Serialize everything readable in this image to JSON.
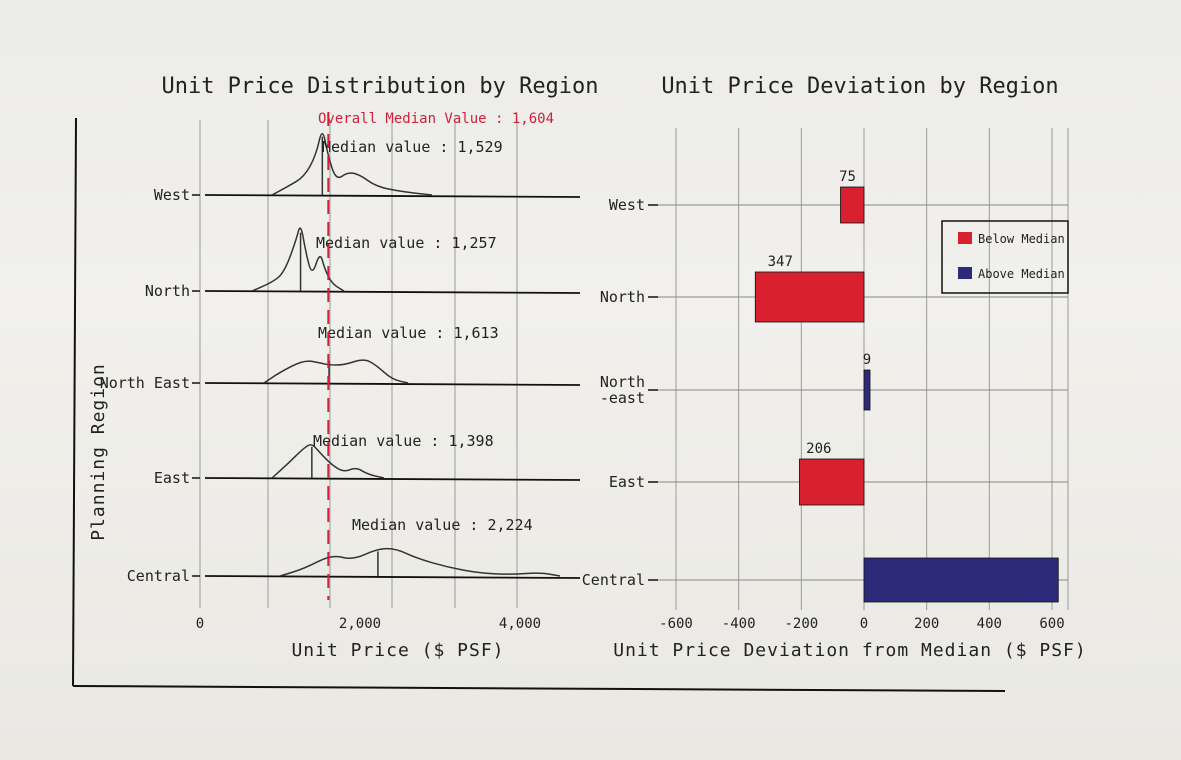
{
  "chart_data": [
    {
      "type": "area",
      "subtype": "ridgeline-density",
      "title": "Unit Price Distribution by Region",
      "xlabel": "Unit Price ($ PSF)",
      "ylabel": "Planning Region",
      "xlim": [
        0,
        5000
      ],
      "x_ticks": [
        "0",
        "2,000",
        "4,000"
      ],
      "x_tick_values": [
        0,
        2000,
        4000
      ],
      "grid": true,
      "overall_median": {
        "label": "Overall Median Value : 1,604",
        "value": 1604,
        "color": "#d0213a"
      },
      "series": [
        {
          "name": "West",
          "median": 1529,
          "median_label": "Median value : 1,529",
          "density": [
            [
              900,
              0.0
            ],
            [
              1100,
              0.12
            ],
            [
              1300,
              0.25
            ],
            [
              1450,
              0.55
            ],
            [
              1529,
              0.95
            ],
            [
              1600,
              0.55
            ],
            [
              1700,
              0.2
            ],
            [
              1850,
              0.32
            ],
            [
              2000,
              0.28
            ],
            [
              2200,
              0.12
            ],
            [
              2500,
              0.05
            ],
            [
              2900,
              0.0
            ]
          ]
        },
        {
          "name": "North",
          "median": 1257,
          "median_label": "Median value : 1,257",
          "density": [
            [
              650,
              0.0
            ],
            [
              900,
              0.12
            ],
            [
              1050,
              0.25
            ],
            [
              1200,
              0.7
            ],
            [
              1257,
              0.95
            ],
            [
              1320,
              0.55
            ],
            [
              1400,
              0.2
            ],
            [
              1500,
              0.55
            ],
            [
              1560,
              0.3
            ],
            [
              1650,
              0.1
            ],
            [
              1800,
              0.0
            ]
          ]
        },
        {
          "name": "North East",
          "median": 1613,
          "median_label": "Median value : 1,613",
          "density": [
            [
              800,
              0.0
            ],
            [
              1000,
              0.15
            ],
            [
              1300,
              0.32
            ],
            [
              1500,
              0.28
            ],
            [
              1613,
              0.25
            ],
            [
              1800,
              0.25
            ],
            [
              2050,
              0.34
            ],
            [
              2200,
              0.25
            ],
            [
              2400,
              0.05
            ],
            [
              2600,
              0.0
            ]
          ]
        },
        {
          "name": "East",
          "median": 1398,
          "median_label": "Median value : 1,398",
          "density": [
            [
              900,
              0.0
            ],
            [
              1100,
              0.2
            ],
            [
              1300,
              0.42
            ],
            [
              1398,
              0.48
            ],
            [
              1500,
              0.35
            ],
            [
              1650,
              0.18
            ],
            [
              1800,
              0.08
            ],
            [
              1950,
              0.15
            ],
            [
              2100,
              0.05
            ],
            [
              2300,
              0.0
            ]
          ]
        },
        {
          "name": "Central",
          "median": 2224,
          "median_label": "Median value : 2,224",
          "density": [
            [
              1000,
              0.0
            ],
            [
              1300,
              0.1
            ],
            [
              1650,
              0.3
            ],
            [
              1900,
              0.22
            ],
            [
              2224,
              0.38
            ],
            [
              2450,
              0.38
            ],
            [
              2700,
              0.25
            ],
            [
              3100,
              0.12
            ],
            [
              3500,
              0.04
            ],
            [
              3900,
              0.02
            ],
            [
              4250,
              0.05
            ],
            [
              4500,
              0.0
            ]
          ]
        }
      ]
    },
    {
      "type": "bar",
      "orientation": "horizontal",
      "title": "Unit Price Deviation by Region",
      "xlabel": "Unit Price Deviation from Median ($ PSF)",
      "ylabel": "",
      "xlim": [
        -600,
        600
      ],
      "x_ticks": [
        "-600",
        "-400",
        "-200",
        "0",
        "200",
        "400",
        "600"
      ],
      "x_tick_values": [
        -600,
        -400,
        -200,
        0,
        200,
        400,
        600
      ],
      "grid": true,
      "legend": {
        "position": "top-right",
        "entries": [
          {
            "label": "Below Median",
            "color": "#d8202e"
          },
          {
            "label": "Above Median",
            "color": "#2e2a7a"
          }
        ]
      },
      "categories": [
        "West",
        "North",
        "North\n-east",
        "East",
        "Central"
      ],
      "category_labels": [
        "West",
        "North",
        "North",
        "-east",
        "East",
        "Central"
      ],
      "values": [
        -75,
        -347,
        9,
        -206,
        620
      ],
      "data_labels": [
        "75",
        "347",
        "9",
        "206",
        ""
      ],
      "colors": [
        "#d8202e",
        "#d8202e",
        "#2e2a7a",
        "#d8202e",
        "#2e2a7a"
      ]
    }
  ]
}
